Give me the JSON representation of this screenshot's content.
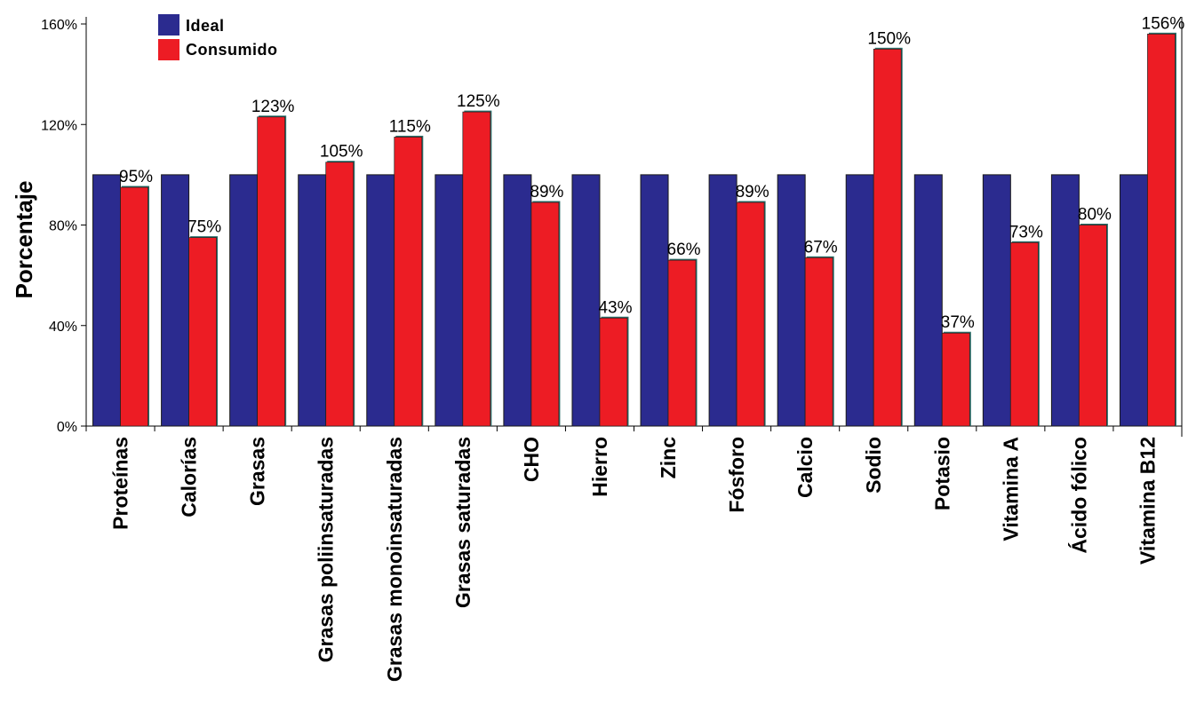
{
  "chart_data": {
    "type": "bar",
    "ylabel": "Porcentaje",
    "xlabel": "",
    "ylim": [
      0,
      160
    ],
    "yticks": [
      0,
      40,
      80,
      120,
      160
    ],
    "ytick_labels": [
      "0%",
      "40%",
      "80%",
      "120%",
      "160%"
    ],
    "grid": false,
    "legend_position": "top-left",
    "categories": [
      "Proteínas",
      "Calorías",
      "Grasas",
      "Grasas poliinsaturadas",
      "Grasas monoinsaturadas",
      "Grasas saturadas",
      "CHO",
      "Hierro",
      "Zinc",
      "Fósforo",
      "Calcio",
      "Sodio",
      "Potasio",
      "Vitamina  A",
      "Ácido fólico",
      "Vitamina B12"
    ],
    "series": [
      {
        "name": "Ideal",
        "color": "#2b2b8f",
        "values": [
          100,
          100,
          100,
          100,
          100,
          100,
          100,
          100,
          100,
          100,
          100,
          100,
          100,
          100,
          100,
          100
        ]
      },
      {
        "name": "Consumido",
        "color": "#ed1c24",
        "values": [
          95,
          75,
          123,
          105,
          115,
          125,
          89,
          43,
          66,
          89,
          67,
          150,
          37,
          73,
          80,
          156
        ]
      }
    ],
    "data_labels": [
      "95%",
      "75%",
      "123%",
      "105%",
      "115%",
      "125%",
      "89%",
      "43%",
      "66%",
      "89%",
      "67%",
      "150%",
      "37%",
      "73%",
      "80%",
      "156%"
    ]
  }
}
